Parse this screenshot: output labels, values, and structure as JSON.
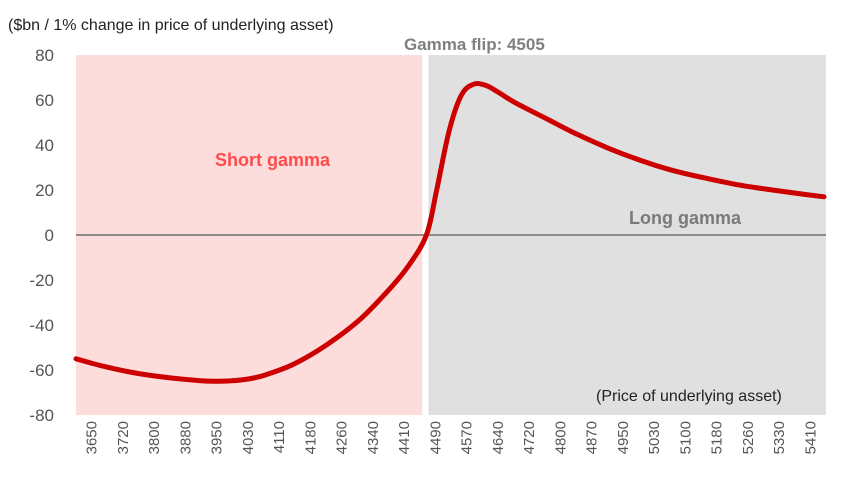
{
  "chart_data": {
    "type": "line",
    "title": "",
    "ylabel": "($bn / 1% change in price of underlying asset)",
    "xlabel": "(Price of underlying asset)",
    "ylim": [
      -80,
      80
    ],
    "yticks": [
      80,
      60,
      40,
      20,
      0,
      -20,
      -40,
      -60,
      -80
    ],
    "xlim": [
      3650,
      5480
    ],
    "categories": [
      "3650",
      "3720",
      "3800",
      "3880",
      "3950",
      "4030",
      "4110",
      "4180",
      "4260",
      "4340",
      "4410",
      "4490",
      "4570",
      "4640",
      "4720",
      "4800",
      "4870",
      "4950",
      "5030",
      "5100",
      "5180",
      "5260",
      "5330",
      "5410"
    ],
    "regions": {
      "short": {
        "label": "Short gamma",
        "from": 3650,
        "to": 4495,
        "color": "#fddcdc"
      },
      "long": {
        "label": "Long gamma",
        "from": 4510,
        "to": 5480,
        "color": "#e0e0e0"
      }
    },
    "annotations": {
      "gamma_flip": "Gamma flip: 4505",
      "flip_value": 4505
    },
    "series": [
      {
        "color": "#cc0000",
        "x": [
          3650,
          3720,
          3800,
          3880,
          3950,
          3990,
          4030,
          4070,
          4110,
          4180,
          4260,
          4340,
          4410,
          4460,
          4505,
          4530,
          4560,
          4590,
          4620,
          4650,
          4680,
          4720,
          4800,
          4870,
          4950,
          5030,
          5100,
          5180,
          5260,
          5330,
          5410,
          5475
        ],
        "y": [
          -55,
          -58.5,
          -61.5,
          -63.5,
          -64.7,
          -65,
          -64.8,
          -64,
          -62.3,
          -57.5,
          -49,
          -38,
          -25,
          -14,
          0,
          20,
          46,
          62,
          67,
          66.5,
          63.5,
          59,
          51.5,
          45,
          38.5,
          33,
          29,
          25.5,
          22.5,
          20.5,
          18.5,
          17
        ]
      }
    ]
  }
}
